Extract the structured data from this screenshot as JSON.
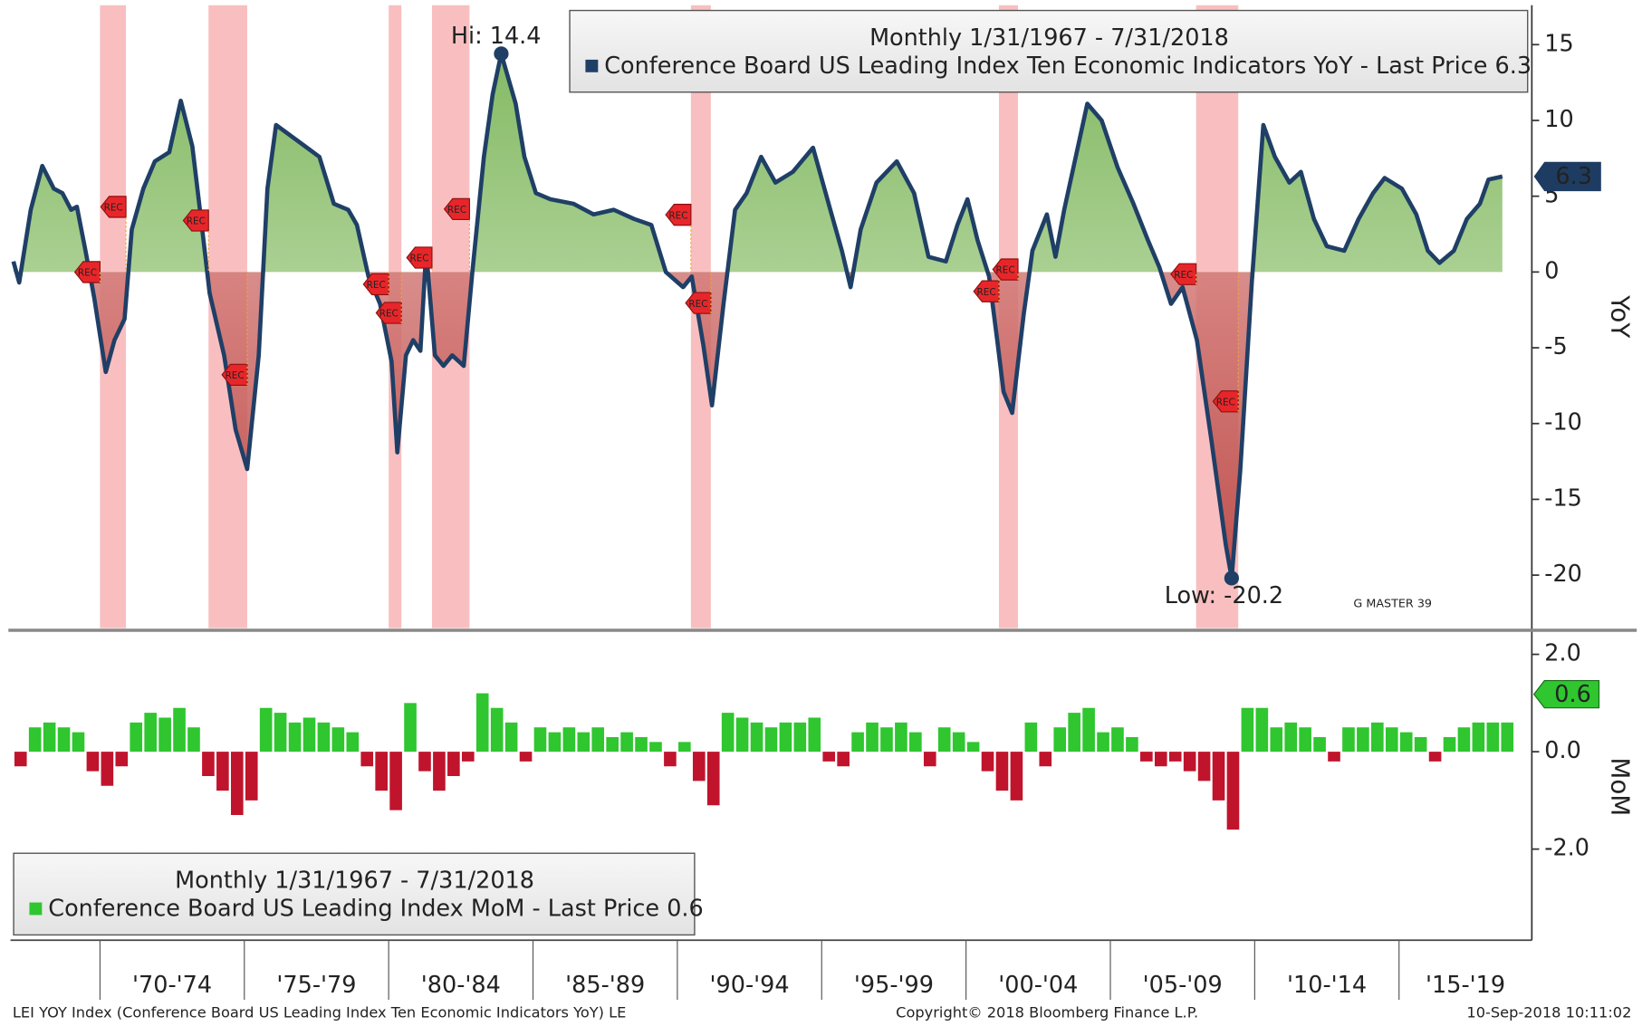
{
  "chart_data": [
    {
      "type": "line",
      "legend_title": "Monthly 1/31/1967 - 7/31/2018",
      "axis_label": "YoY",
      "hi_label": "Hi: 14.4",
      "low_label": "Low: -20.2",
      "watermark": "G MASTER 39",
      "rec_label": "REC",
      "recessions": [
        [
          1970.0,
          1970.9
        ],
        [
          1973.76,
          1975.1
        ],
        [
          1980.0,
          1980.44
        ],
        [
          1981.5,
          1982.8
        ],
        [
          1990.47,
          1991.16
        ],
        [
          2001.14,
          2001.8
        ],
        [
          2007.97,
          2009.43
        ]
      ],
      "xlim": [
        1966.9,
        2019.6
      ],
      "ylim": [
        -23.5,
        17.6
      ],
      "yticks": [
        15,
        10,
        5,
        0,
        -5,
        -10,
        -15,
        -20
      ],
      "x": [
        1967.0,
        1967.2,
        1967.6,
        1968.0,
        1968.4,
        1968.7,
        1969.0,
        1969.2,
        1969.5,
        1969.8,
        1970.2,
        1970.5,
        1970.85,
        1971.1,
        1971.5,
        1971.9,
        1972.4,
        1972.8,
        1973.2,
        1973.5,
        1973.8,
        1974.3,
        1974.7,
        1975.1,
        1975.5,
        1975.8,
        1976.1,
        1976.6,
        1977.1,
        1977.6,
        1978.1,
        1978.6,
        1978.9,
        1979.3,
        1979.7,
        1980.1,
        1980.3,
        1980.6,
        1980.85,
        1981.1,
        1981.3,
        1981.6,
        1981.9,
        1982.2,
        1982.6,
        1982.9,
        1983.3,
        1983.6,
        1983.9,
        1984.4,
        1984.7,
        1985.1,
        1985.6,
        1986.4,
        1987.1,
        1987.8,
        1988.5,
        1989.1,
        1989.6,
        1990.2,
        1990.5,
        1990.9,
        1991.2,
        1991.6,
        1992.0,
        1992.4,
        1992.9,
        1993.4,
        1994.0,
        1994.7,
        1995.3,
        1995.7,
        1996.0,
        1996.35,
        1996.9,
        1997.6,
        1998.2,
        1998.7,
        1999.3,
        1999.7,
        2000.05,
        2000.4,
        2000.8,
        2001.1,
        2001.3,
        2001.6,
        2002.0,
        2002.3,
        2002.8,
        2003.1,
        2003.4,
        2003.8,
        2004.2,
        2004.7,
        2005.25,
        2005.8,
        2006.3,
        2006.7,
        2007.1,
        2007.5,
        2008.0,
        2008.5,
        2009.0,
        2009.2,
        2009.5,
        2009.9,
        2010.3,
        2010.7,
        2011.2,
        2011.6,
        2012.05,
        2012.5,
        2013.1,
        2013.6,
        2014.1,
        2014.5,
        2015.1,
        2015.6,
        2016.0,
        2016.4,
        2016.9,
        2017.35,
        2017.8,
        2018.1,
        2018.58
      ],
      "series": [
        {
          "name": "Conference Board US Leading Index Ten Economic Indicators YoY - Last Price 6.3",
          "color": "#1f3f66",
          "values": [
            0.7,
            -0.7,
            4.1,
            7.0,
            5.5,
            5.2,
            4.1,
            4.3,
            1.4,
            -1.7,
            -6.6,
            -4.5,
            -3.1,
            2.8,
            5.5,
            7.3,
            7.9,
            11.3,
            8.3,
            3.5,
            -1.4,
            -5.5,
            -10.4,
            -13.0,
            -5.5,
            5.5,
            9.7,
            9.0,
            8.3,
            7.6,
            4.5,
            4.1,
            3.1,
            -0.3,
            -2.1,
            -5.9,
            -11.9,
            -5.5,
            -4.5,
            -5.2,
            1.4,
            -5.5,
            -6.2,
            -5.5,
            -6.2,
            0,
            7.6,
            11.7,
            14.4,
            11.1,
            7.6,
            5.2,
            4.8,
            4.5,
            3.8,
            4.1,
            3.5,
            3.1,
            0,
            -1.0,
            -0.3,
            -4.8,
            -8.8,
            -2.1,
            4.1,
            5.2,
            7.6,
            5.9,
            6.6,
            8.2,
            4.1,
            1.4,
            -1.0,
            2.8,
            5.9,
            7.3,
            5.2,
            1.0,
            0.7,
            3.1,
            4.8,
            2.1,
            -0.3,
            -4.8,
            -7.9,
            -9.3,
            -2.8,
            1.4,
            3.8,
            1.0,
            4.1,
            7.6,
            11.1,
            10.0,
            6.9,
            4.5,
            2.1,
            0.3,
            -2.1,
            -1.0,
            -4.5,
            -11.1,
            -18.0,
            -20.2,
            -13.1,
            -0.7,
            9.7,
            7.6,
            5.9,
            6.6,
            3.5,
            1.7,
            1.4,
            3.5,
            5.2,
            6.2,
            5.5,
            3.8,
            1.4,
            0.6,
            1.4,
            3.5,
            4.5,
            6.1,
            6.3
          ]
        }
      ]
    },
    {
      "type": "bar",
      "legend_title": "Monthly 1/31/1967 - 7/31/2018",
      "axis_label": "MoM",
      "color_up": "#2fc62f",
      "color_down": "#c0142c",
      "xlim": [
        1966.9,
        2019.6
      ],
      "ylim": [
        -3.87,
        2.43
      ],
      "yticks": [
        {
          "value": 2,
          "label": "2.0"
        },
        {
          "value": 0,
          "label": "0.0"
        },
        {
          "value": -2,
          "label": "-2.0"
        }
      ],
      "xticks": [
        {
          "value": 1970,
          "label": "'70-'74"
        },
        {
          "value": 1975,
          "label": "'75-'79"
        },
        {
          "value": 1980,
          "label": "'80-'84"
        },
        {
          "value": 1985,
          "label": "'85-'89"
        },
        {
          "value": 1990,
          "label": "'90-'94"
        },
        {
          "value": 1995,
          "label": "'95-'99"
        },
        {
          "value": 2000,
          "label": "'00-'04"
        },
        {
          "value": 2005,
          "label": "'05-'09"
        },
        {
          "value": 2010,
          "label": "'10-'14"
        },
        {
          "value": 2015,
          "label": "'15-'19"
        }
      ],
      "x": [
        1967.0,
        1967.5,
        1968.0,
        1968.5,
        1969.0,
        1969.5,
        1970.0,
        1970.5,
        1971.0,
        1971.5,
        1972.0,
        1972.5,
        1973.0,
        1973.5,
        1974.0,
        1974.5,
        1975.0,
        1975.5,
        1976.0,
        1976.5,
        1977.0,
        1977.5,
        1978.0,
        1978.5,
        1979.0,
        1979.5,
        1980.0,
        1980.5,
        1981.0,
        1981.5,
        1982.0,
        1982.5,
        1983.0,
        1983.5,
        1984.0,
        1984.5,
        1985.0,
        1985.5,
        1986.0,
        1986.5,
        1987.0,
        1987.5,
        1988.0,
        1988.5,
        1989.0,
        1989.5,
        1990.0,
        1990.5,
        1991.0,
        1991.5,
        1992.0,
        1992.5,
        1993.0,
        1993.5,
        1994.0,
        1994.5,
        1995.0,
        1995.5,
        1996.0,
        1996.5,
        1997.0,
        1997.5,
        1998.0,
        1998.5,
        1999.0,
        1999.5,
        2000.0,
        2000.5,
        2001.0,
        2001.5,
        2002.0,
        2002.5,
        2003.0,
        2003.5,
        2004.0,
        2004.5,
        2005.0,
        2005.5,
        2006.0,
        2006.5,
        2007.0,
        2007.5,
        2008.0,
        2008.5,
        2009.0,
        2009.5,
        2010.0,
        2010.5,
        2011.0,
        2011.5,
        2012.0,
        2012.5,
        2013.0,
        2013.5,
        2014.0,
        2014.5,
        2015.0,
        2015.5,
        2016.0,
        2016.5,
        2017.0,
        2017.5,
        2018.0,
        2018.5
      ],
      "series": [
        {
          "name": "Conference Board US Leading Index MoM - Last Price 0.6",
          "values": [
            -0.3,
            0.5,
            0.6,
            0.5,
            0.4,
            -0.4,
            -0.7,
            -0.3,
            0.6,
            0.8,
            0.7,
            0.9,
            0.5,
            -0.5,
            -0.8,
            -1.3,
            -1.0,
            0.9,
            0.8,
            0.6,
            0.7,
            0.6,
            0.5,
            0.4,
            -0.3,
            -0.8,
            -1.2,
            1.0,
            -0.4,
            -0.8,
            -0.5,
            -0.2,
            1.2,
            0.9,
            0.6,
            -0.2,
            0.5,
            0.4,
            0.5,
            0.4,
            0.5,
            0.3,
            0.4,
            0.3,
            0.2,
            -0.3,
            0.2,
            -0.6,
            -1.1,
            0.8,
            0.7,
            0.6,
            0.5,
            0.6,
            0.6,
            0.7,
            -0.2,
            -0.3,
            0.4,
            0.6,
            0.5,
            0.6,
            0.4,
            -0.3,
            0.5,
            0.4,
            0.2,
            -0.4,
            -0.8,
            -1.0,
            0.6,
            -0.3,
            0.5,
            0.8,
            0.9,
            0.4,
            0.5,
            0.3,
            -0.2,
            -0.3,
            -0.2,
            -0.4,
            -0.6,
            -1.0,
            -1.6,
            0.9,
            0.9,
            0.5,
            0.6,
            0.5,
            0.3,
            -0.2,
            0.5,
            0.5,
            0.6,
            0.5,
            0.4,
            0.3,
            -0.2,
            0.3,
            0.5,
            0.6,
            0.6,
            0.6
          ]
        }
      ]
    }
  ],
  "footer": {
    "left": "LEI YOY Index (Conference Board US Leading Index Ten Economic Indicators YoY) LE",
    "center": "Copyright© 2018 Bloomberg Finance L.P.",
    "right": "10-Sep-2018 10:11:02"
  }
}
